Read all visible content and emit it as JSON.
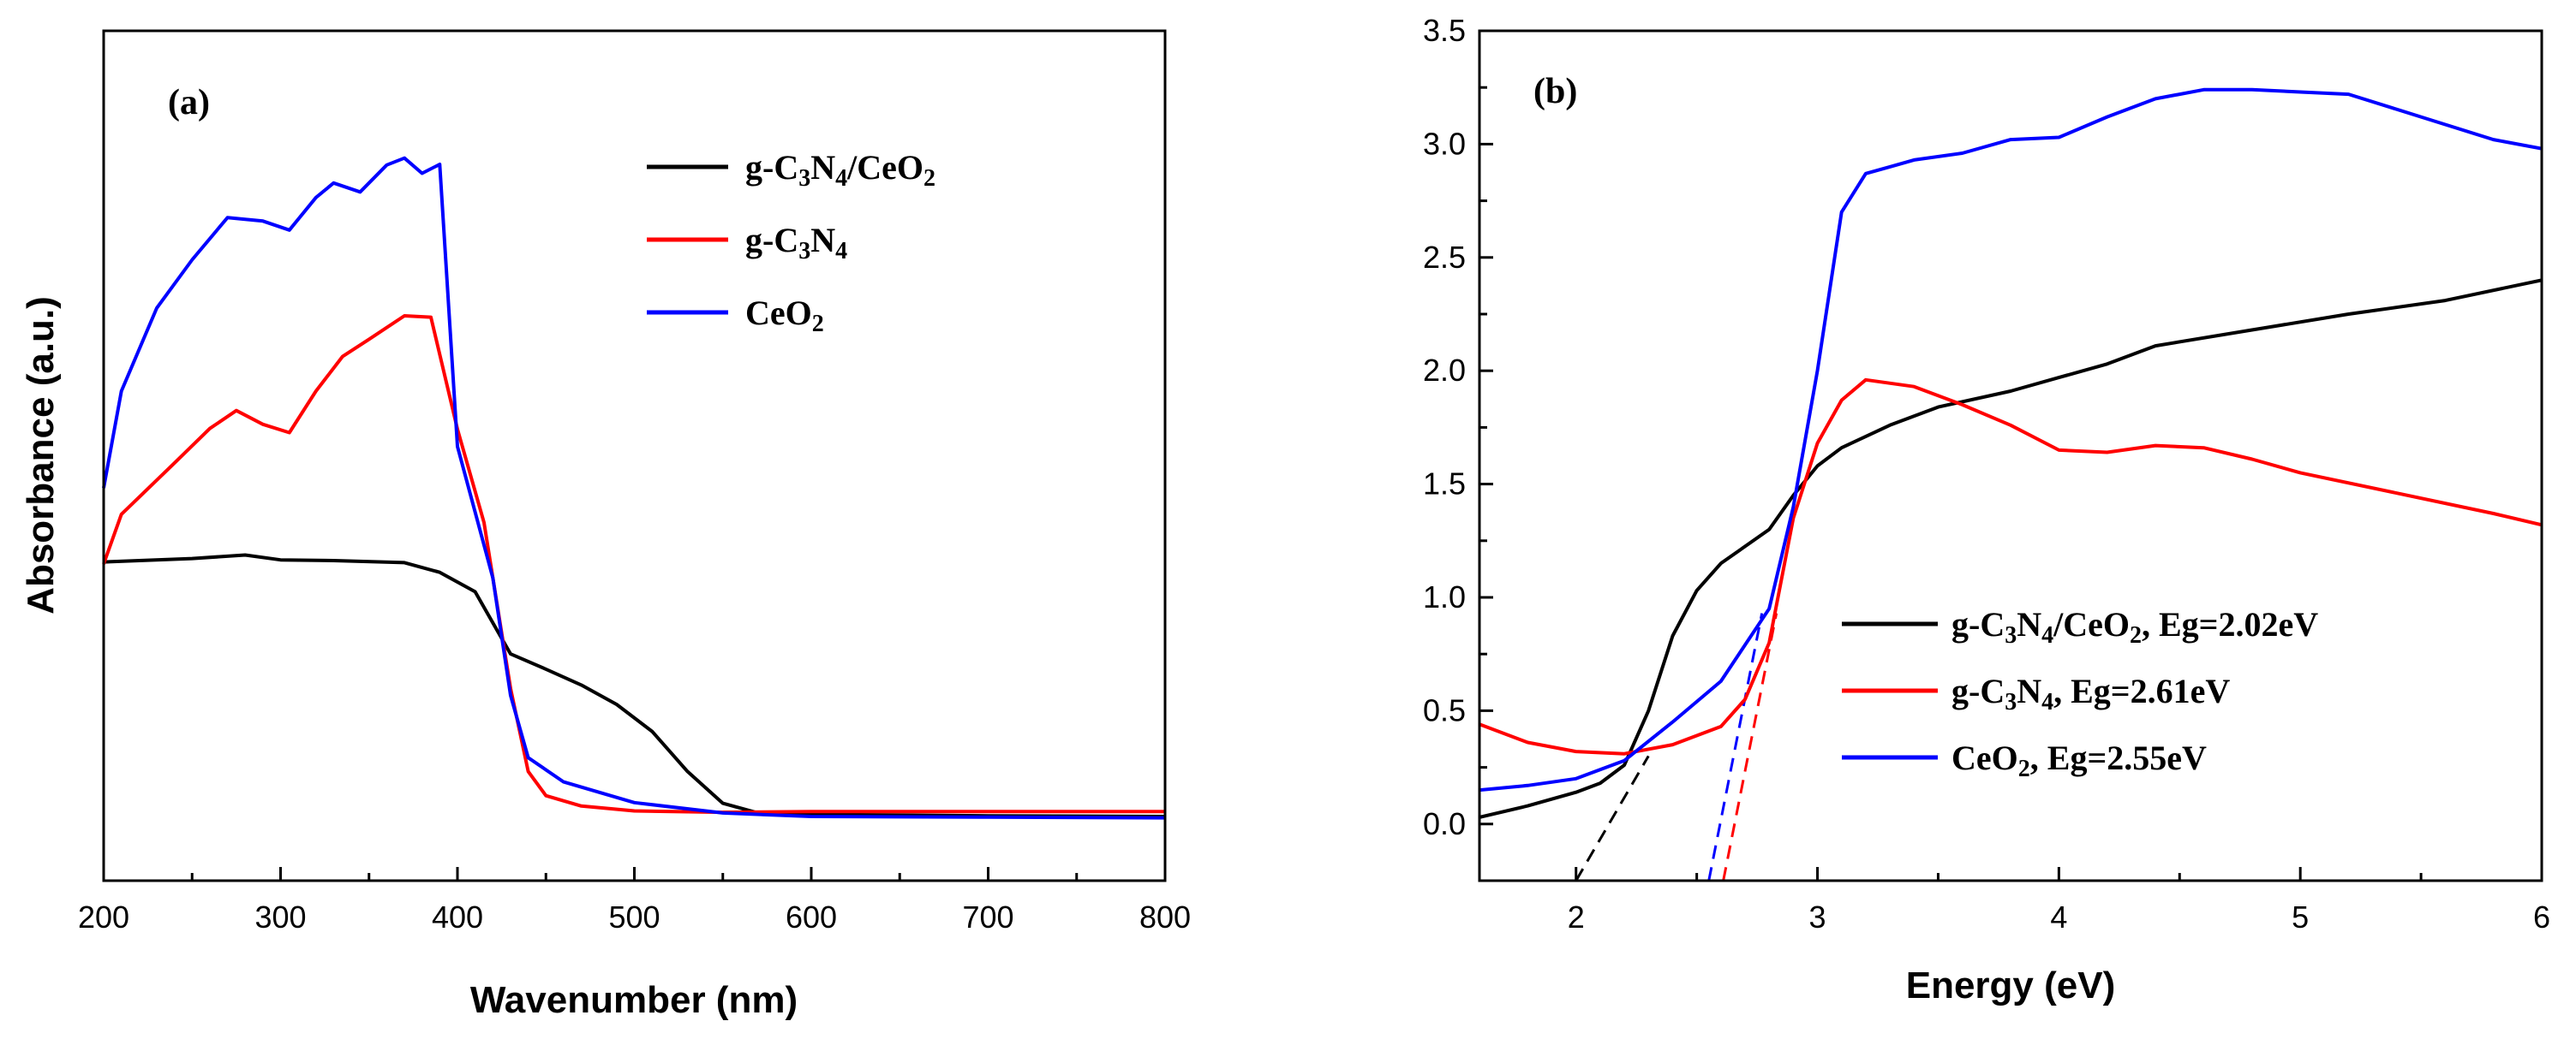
{
  "chart_data": [
    {
      "panel": "(a)",
      "type": "line",
      "xlabel": "Wavenumber (nm)",
      "ylabel": "Absorbance (a.u.)",
      "xlim": [
        200,
        800
      ],
      "ylim": [
        0,
        1
      ],
      "x_ticks": [
        200,
        300,
        400,
        500,
        600,
        700,
        800
      ],
      "y_ticks_shown": false,
      "legend_position": "top-right",
      "series": [
        {
          "name": "g-C3N4/CeO2",
          "label_parts": [
            "g-C",
            "3",
            "N",
            "4",
            "/CeO",
            "2"
          ],
          "color": "#000000",
          "x": [
            200,
            250,
            280,
            300,
            330,
            370,
            390,
            410,
            430,
            450,
            470,
            490,
            510,
            530,
            550,
            570,
            600,
            700,
            800
          ],
          "y": [
            0.373,
            0.378,
            0.383,
            0.376,
            0.375,
            0.372,
            0.358,
            0.33,
            0.24,
            0.218,
            0.195,
            0.167,
            0.128,
            0.07,
            0.024,
            0.01,
            0.008,
            0.006,
            0.005
          ]
        },
        {
          "name": "g-C3N4",
          "label_parts": [
            "g-C",
            "3",
            "N",
            "4"
          ],
          "color": "#ff0000",
          "x": [
            200,
            210,
            240,
            260,
            275,
            290,
            305,
            320,
            335,
            350,
            370,
            385,
            400,
            415,
            430,
            440,
            450,
            470,
            500,
            550,
            600,
            700,
            800
          ],
          "y": [
            0.37,
            0.442,
            0.516,
            0.566,
            0.592,
            0.572,
            0.56,
            0.62,
            0.67,
            0.695,
            0.729,
            0.727,
            0.565,
            0.43,
            0.19,
            0.07,
            0.035,
            0.02,
            0.013,
            0.011,
            0.012,
            0.012,
            0.012
          ]
        },
        {
          "name": "CeO2",
          "label_parts": [
            "CeO",
            "2"
          ],
          "color": "#0000ff",
          "x": [
            200,
            210,
            230,
            250,
            270,
            290,
            305,
            320,
            330,
            345,
            360,
            370,
            380,
            390,
            400,
            420,
            430,
            440,
            460,
            500,
            550,
            600,
            700,
            800
          ],
          "y": [
            0.48,
            0.62,
            0.74,
            0.81,
            0.871,
            0.866,
            0.853,
            0.9,
            0.921,
            0.908,
            0.947,
            0.957,
            0.935,
            0.948,
            0.54,
            0.35,
            0.18,
            0.09,
            0.055,
            0.025,
            0.01,
            0.005,
            0.004,
            0.003
          ]
        }
      ]
    },
    {
      "panel": "(b)",
      "type": "line",
      "xlabel": "Energy (eV)",
      "ylabel": "",
      "xlim": [
        1.6,
        6
      ],
      "ylim": [
        -0.25,
        3.5
      ],
      "x_ticks": [
        2,
        3,
        4,
        5,
        6
      ],
      "y_ticks": [
        0.0,
        0.5,
        1.0,
        1.5,
        2.0,
        2.5,
        3.0,
        3.5
      ],
      "legend_position": "lower-right",
      "series": [
        {
          "name": "g-C3N4/CeO2, Eg=2.02eV",
          "label_parts": [
            "g-C",
            "3",
            "N",
            "4",
            "/CeO",
            "2",
            ", Eg=2.02eV"
          ],
          "color": "#000000",
          "x": [
            1.6,
            1.8,
            2.0,
            2.1,
            2.2,
            2.3,
            2.4,
            2.5,
            2.6,
            2.8,
            2.9,
            3.0,
            3.1,
            3.3,
            3.5,
            3.8,
            4.0,
            4.2,
            4.4,
            4.8,
            5.2,
            5.6,
            6.0
          ],
          "y": [
            0.03,
            0.08,
            0.14,
            0.18,
            0.26,
            0.5,
            0.83,
            1.03,
            1.15,
            1.3,
            1.45,
            1.58,
            1.66,
            1.76,
            1.84,
            1.91,
            1.97,
            2.03,
            2.11,
            2.18,
            2.25,
            2.31,
            2.4
          ]
        },
        {
          "name": "g-C3N4, Eg=2.61eV",
          "label_parts": [
            "g-C",
            "3",
            "N",
            "4",
            ", Eg=2.61eV"
          ],
          "color": "#ff0000",
          "x": [
            1.6,
            1.8,
            2.0,
            2.2,
            2.4,
            2.6,
            2.7,
            2.8,
            2.9,
            3.0,
            3.1,
            3.2,
            3.4,
            3.6,
            3.8,
            4.0,
            4.2,
            4.4,
            4.6,
            4.8,
            5.0,
            5.4,
            5.8,
            6.0
          ],
          "y": [
            0.44,
            0.36,
            0.32,
            0.31,
            0.35,
            0.43,
            0.55,
            0.8,
            1.35,
            1.68,
            1.87,
            1.96,
            1.93,
            1.85,
            1.76,
            1.65,
            1.64,
            1.67,
            1.66,
            1.61,
            1.55,
            1.46,
            1.37,
            1.32
          ]
        },
        {
          "name": "CeO2, Eg=2.55eV",
          "label_parts": [
            "CeO",
            "2",
            ", Eg=2.55eV"
          ],
          "color": "#0000ff",
          "x": [
            1.6,
            1.8,
            2.0,
            2.2,
            2.4,
            2.6,
            2.8,
            2.9,
            3.0,
            3.1,
            3.2,
            3.3,
            3.4,
            3.6,
            3.8,
            4.0,
            4.2,
            4.4,
            4.6,
            4.8,
            5.0,
            5.2,
            5.5,
            5.8,
            6.0
          ],
          "y": [
            0.15,
            0.17,
            0.2,
            0.28,
            0.45,
            0.63,
            0.95,
            1.4,
            2.0,
            2.7,
            2.87,
            2.9,
            2.93,
            2.96,
            3.02,
            3.03,
            3.12,
            3.2,
            3.24,
            3.24,
            3.23,
            3.22,
            3.12,
            3.02,
            2.98
          ]
        }
      ],
      "fit_lines": [
        {
          "name": "g-C3N4/CeO2 tangent",
          "color": "#000000",
          "x": [
            2.0,
            2.3
          ],
          "y": [
            -0.25,
            0.3
          ]
        },
        {
          "name": "CeO2 tangent",
          "color": "#0000ff",
          "x": [
            2.55,
            2.77
          ],
          "y": [
            -0.25,
            0.93
          ]
        },
        {
          "name": "g-C3N4 tangent",
          "color": "#ff0000",
          "x": [
            2.61,
            2.83
          ],
          "y": [
            -0.25,
            0.93
          ]
        }
      ]
    }
  ]
}
